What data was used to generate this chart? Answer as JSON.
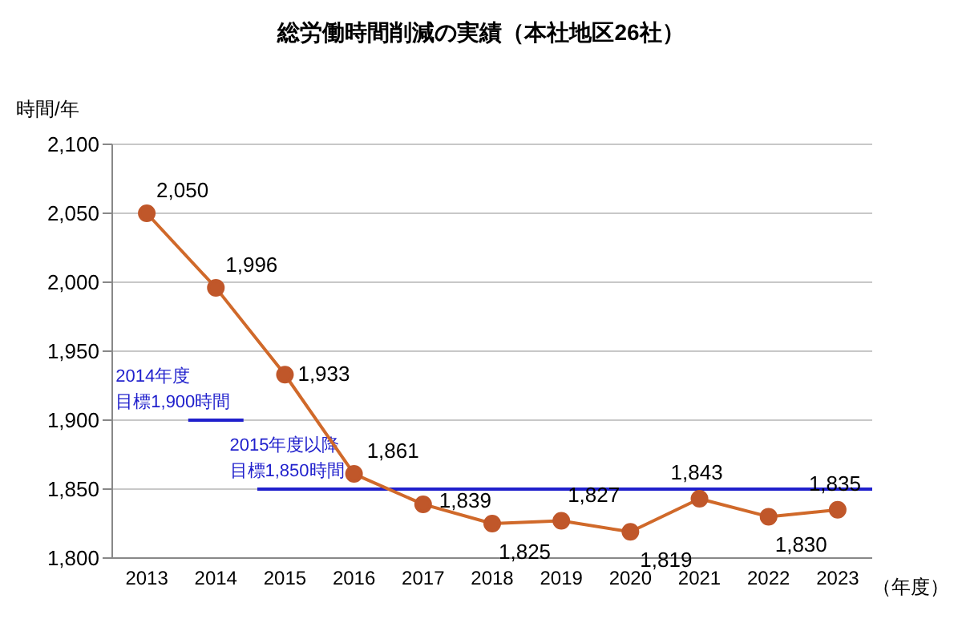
{
  "chart_data": {
    "type": "line",
    "title": "総労働時間削減の実績（本社地区26社）",
    "ylabel": "時間/年",
    "xlabel": "（年度）",
    "categories": [
      "2013",
      "2014",
      "2015",
      "2016",
      "2017",
      "2018",
      "2019",
      "2020",
      "2021",
      "2022",
      "2023"
    ],
    "series": [
      {
        "color": "#d0692a",
        "values": [
          2050,
          1996,
          1933,
          1861,
          1839,
          1825,
          1827,
          1819,
          1843,
          1830,
          1835
        ],
        "value_labels": [
          "2,050",
          "1,996",
          "1,933",
          "1,861",
          "1,839",
          "1,825",
          "1,827",
          "1,819",
          "1,843",
          "1,830",
          "1,835"
        ]
      }
    ],
    "ylim": [
      1800,
      2100
    ],
    "yticks": [
      {
        "value": 1800,
        "label": "1,800"
      },
      {
        "value": 1850,
        "label": "1,850"
      },
      {
        "value": 1900,
        "label": "1,900"
      },
      {
        "value": 1950,
        "label": "1,950"
      },
      {
        "value": 2000,
        "label": "2,000"
      },
      {
        "value": 2050,
        "label": "2,050"
      },
      {
        "value": 2100,
        "label": "2,100"
      }
    ],
    "ref_lines": [
      {
        "axis": "y",
        "value": 1900,
        "label": "2014年度目標1,900時間",
        "color": "#1f1fcc"
      },
      {
        "axis": "y",
        "value": 1850,
        "label": "2015年度以降目標1,850時間",
        "color": "#1f1fcc"
      }
    ],
    "grid": "y",
    "legend": false,
    "marker": "circle"
  }
}
